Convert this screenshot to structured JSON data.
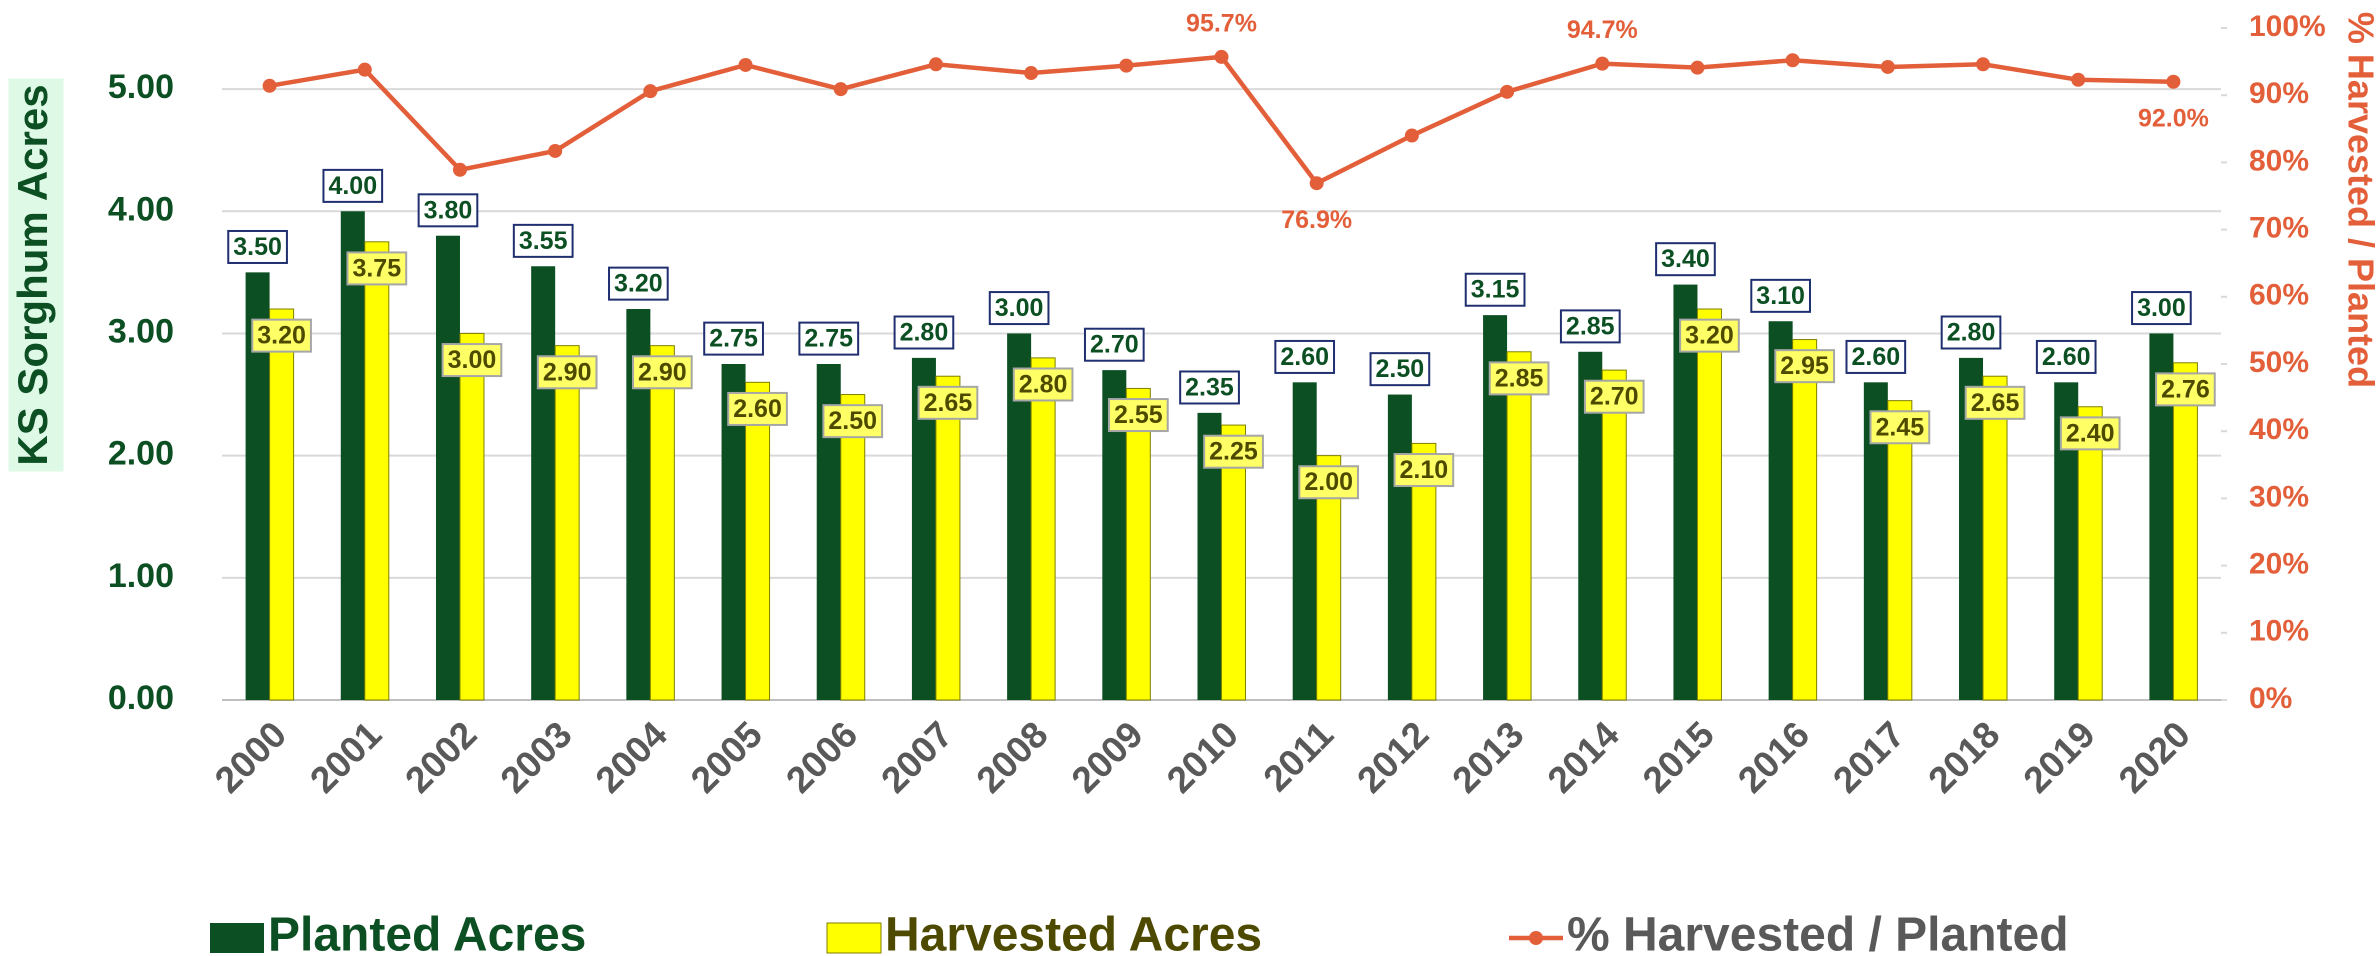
{
  "chart_data": {
    "type": "bar",
    "y_label": "KS Sorghum Acres",
    "y2_label": "% Harvested / Planted",
    "categories": [
      "2000",
      "2001",
      "2002",
      "2003",
      "2004",
      "2005",
      "2006",
      "2007",
      "2008",
      "2009",
      "2010",
      "2011",
      "2012",
      "2013",
      "2014",
      "2015",
      "2016",
      "2017",
      "2018",
      "2019",
      "2020"
    ],
    "series": [
      {
        "name": "Planted Acres",
        "type": "bar",
        "color": "#0b4f22",
        "values": [
          3.5,
          4.0,
          3.8,
          3.55,
          3.2,
          2.75,
          2.75,
          2.8,
          3.0,
          2.7,
          2.35,
          2.6,
          2.5,
          3.15,
          2.85,
          3.4,
          3.1,
          2.6,
          2.8,
          2.6,
          3.0
        ],
        "value_labels": [
          "3.50",
          "4.00",
          "3.80",
          "3.55",
          "3.20",
          "2.75",
          "2.75",
          "2.80",
          "3.00",
          "2.70",
          "2.35",
          "2.60",
          "2.50",
          "3.15",
          "2.85",
          "3.40",
          "3.10",
          "2.60",
          "2.80",
          "2.60",
          "3.00"
        ]
      },
      {
        "name": "Harvested Acres",
        "type": "bar",
        "color": "#ffff00",
        "values": [
          3.2,
          3.75,
          3.0,
          2.9,
          2.9,
          2.6,
          2.5,
          2.65,
          2.8,
          2.55,
          2.25,
          2.0,
          2.1,
          2.85,
          2.7,
          3.2,
          2.95,
          2.45,
          2.65,
          2.4,
          2.76
        ],
        "value_labels": [
          "3.20",
          "3.75",
          "3.00",
          "2.90",
          "2.90",
          "2.60",
          "2.50",
          "2.65",
          "2.80",
          "2.55",
          "2.25",
          "2.00",
          "2.10",
          "2.85",
          "2.70",
          "3.20",
          "2.95",
          "2.45",
          "2.65",
          "2.40",
          "2.76"
        ]
      },
      {
        "name": "% Harvested / Planted",
        "type": "line",
        "axis": "y2",
        "color": "#e35f3a",
        "values": [
          91.4,
          93.8,
          78.9,
          81.7,
          90.6,
          94.5,
          90.9,
          94.6,
          93.3,
          94.4,
          95.7,
          76.9,
          84.0,
          90.5,
          94.7,
          94.1,
          95.2,
          94.2,
          94.6,
          92.3,
          92.0
        ],
        "value_labels": [
          null,
          null,
          null,
          null,
          null,
          null,
          null,
          null,
          null,
          null,
          "95.7%",
          "76.9%",
          null,
          null,
          "94.7%",
          null,
          null,
          null,
          null,
          null,
          "92.0%"
        ]
      }
    ],
    "ylim": [
      0,
      5.5
    ],
    "yticks": [
      {
        "value": 0,
        "label": "0.00"
      },
      {
        "value": 1,
        "label": "1.00"
      },
      {
        "value": 2,
        "label": "2.00"
      },
      {
        "value": 3,
        "label": "3.00"
      },
      {
        "value": 4,
        "label": "4.00"
      },
      {
        "value": 5,
        "label": "5.00"
      }
    ],
    "y2lim": [
      0,
      100
    ],
    "y2ticks": [
      {
        "value": 0,
        "label": "0%"
      },
      {
        "value": 10,
        "label": "10%"
      },
      {
        "value": 20,
        "label": "20%"
      },
      {
        "value": 30,
        "label": "30%"
      },
      {
        "value": 40,
        "label": "40%"
      },
      {
        "value": 50,
        "label": "50%"
      },
      {
        "value": 60,
        "label": "60%"
      },
      {
        "value": 70,
        "label": "70%"
      },
      {
        "value": 80,
        "label": "80%"
      },
      {
        "value": 90,
        "label": "90%"
      },
      {
        "value": 100,
        "label": "100%"
      }
    ],
    "grid": true,
    "legend": "bottom"
  }
}
